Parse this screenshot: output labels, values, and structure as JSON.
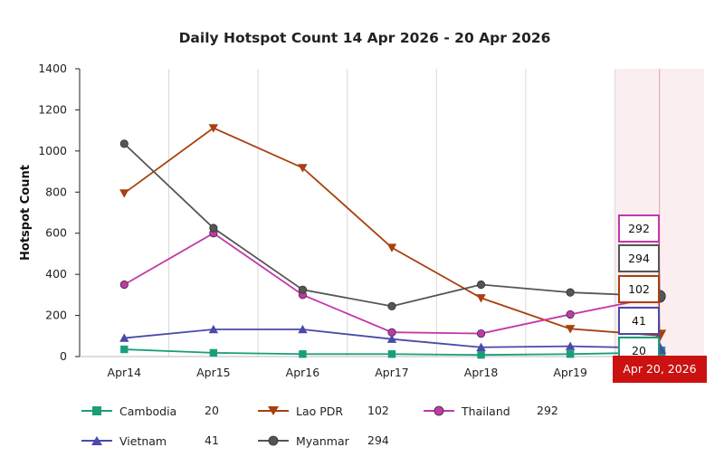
{
  "chart_data": {
    "type": "line",
    "title": "Daily Hotspot Count 14 Apr 2026 - 20 Apr 2026",
    "ylabel": "Hotspot Count",
    "xlabel": "",
    "categories": [
      "Apr14",
      "Apr15",
      "Apr16",
      "Apr17",
      "Apr18",
      "Apr19",
      "Apr 20, 2026"
    ],
    "ylim": [
      0,
      1400
    ],
    "yticks": [
      0,
      200,
      400,
      600,
      800,
      1000,
      1200,
      1400
    ],
    "grid": "vertical",
    "legend_position": "bottom",
    "highlighted_category": "Apr 20, 2026",
    "series": [
      {
        "name": "Cambodia",
        "color": "#1a9e7a",
        "marker": "square",
        "legend_value": "20",
        "values": [
          35,
          18,
          12,
          12,
          8,
          12,
          20
        ]
      },
      {
        "name": "Lao PDR",
        "color": "#a8400e",
        "marker": "triangle-down",
        "legend_value": "102",
        "values": [
          795,
          1112,
          918,
          530,
          285,
          135,
          102
        ]
      },
      {
        "name": "Thailand",
        "color": "#c238a8",
        "marker": "circle",
        "legend_value": "292",
        "values": [
          350,
          600,
          300,
          118,
          112,
          205,
          292
        ]
      },
      {
        "name": "Vietnam",
        "color": "#4a4aa8",
        "marker": "triangle-up",
        "legend_value": "41",
        "values": [
          90,
          132,
          132,
          85,
          45,
          50,
          41
        ]
      },
      {
        "name": "Myanmar",
        "color": "#555555",
        "marker": "circle",
        "legend_value": "294",
        "values": [
          1035,
          625,
          325,
          245,
          350,
          312,
          294
        ]
      }
    ],
    "tooltip_values": [
      "292",
      "294",
      "102",
      "41",
      "20"
    ]
  }
}
